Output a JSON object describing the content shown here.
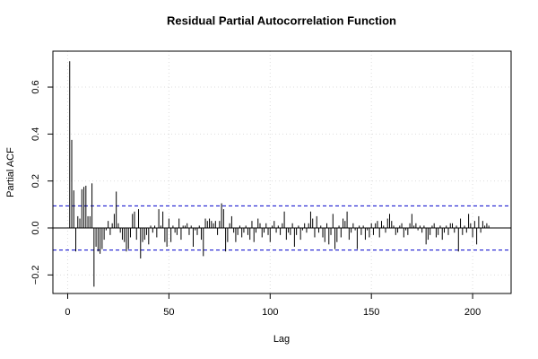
{
  "chart_data": {
    "type": "pacf",
    "title": "Residual Partial Autocorrelation Function",
    "x_label": "Lag",
    "y_label": "Partial ACF",
    "x": [
      1,
      2,
      3,
      4,
      5,
      6,
      7,
      8,
      9,
      10,
      11,
      12,
      13,
      14,
      15,
      16,
      17,
      18,
      19,
      20,
      21,
      22,
      23,
      24,
      25,
      26,
      27,
      28,
      29,
      30,
      31,
      32,
      33,
      34,
      35,
      36,
      37,
      38,
      39,
      40,
      41,
      42,
      43,
      44,
      45,
      46,
      47,
      48,
      49,
      50,
      51,
      52,
      53,
      54,
      55,
      56,
      57,
      58,
      59,
      60,
      61,
      62,
      63,
      64,
      65,
      66,
      67,
      68,
      69,
      70,
      71,
      72,
      73,
      74,
      75,
      76,
      77,
      78,
      79,
      80,
      81,
      82,
      83,
      84,
      85,
      86,
      87,
      88,
      89,
      90,
      91,
      92,
      93,
      94,
      95,
      96,
      97,
      98,
      99,
      100,
      101,
      102,
      103,
      104,
      105,
      106,
      107,
      108,
      109,
      110,
      111,
      112,
      113,
      114,
      115,
      116,
      117,
      118,
      119,
      120,
      121,
      122,
      123,
      124,
      125,
      126,
      127,
      128,
      129,
      130,
      131,
      132,
      133,
      134,
      135,
      136,
      137,
      138,
      139,
      140,
      141,
      142,
      143,
      144,
      145,
      146,
      147,
      148,
      149,
      150,
      151,
      152,
      153,
      154,
      155,
      156,
      157,
      158,
      159,
      160,
      161,
      162,
      163,
      164,
      165,
      166,
      167,
      168,
      169,
      170,
      171,
      172,
      173,
      174,
      175,
      176,
      177,
      178,
      179,
      180,
      181,
      182,
      183,
      184,
      185,
      186,
      187,
      188,
      189,
      190,
      191,
      192,
      193,
      194,
      195,
      196,
      197,
      198,
      199,
      200,
      201,
      202,
      203,
      204,
      205,
      206,
      207,
      208
    ],
    "values": [
      0.71,
      0.375,
      0.16,
      -0.1,
      0.05,
      0.04,
      0.165,
      0.175,
      0.18,
      0.05,
      0.05,
      0.19,
      -0.25,
      -0.08,
      -0.1,
      -0.11,
      -0.09,
      -0.05,
      -0.01,
      0.03,
      -0.03,
      0.02,
      0.06,
      0.155,
      0.02,
      -0.02,
      -0.05,
      -0.06,
      -0.1,
      -0.09,
      -0.04,
      0.06,
      0.07,
      -0.05,
      0.08,
      -0.13,
      -0.06,
      -0.05,
      -0.03,
      -0.07,
      0.01,
      -0.02,
      0.01,
      -0.04,
      0.08,
      0.01,
      0.07,
      -0.06,
      -0.08,
      0.04,
      -0.06,
      0.01,
      -0.02,
      -0.03,
      0.04,
      -0.05,
      0.01,
      0.01,
      0.02,
      -0.03,
      0.01,
      -0.08,
      -0.01,
      -0.03,
      0.01,
      -0.05,
      -0.12,
      0.04,
      0.03,
      0.04,
      0.03,
      0.02,
      0.03,
      -0.03,
      0.03,
      0.105,
      0.08,
      -0.1,
      -0.06,
      0.02,
      0.05,
      -0.02,
      -0.06,
      -0.03,
      0.01,
      -0.04,
      -0.02,
      0.01,
      -0.03,
      -0.05,
      0.03,
      -0.06,
      -0.02,
      0.04,
      0.02,
      -0.04,
      -0.02,
      0.02,
      -0.03,
      -0.06,
      0.01,
      0.03,
      -0.02,
      0.01,
      -0.03,
      0.02,
      0.07,
      -0.05,
      -0.02,
      -0.03,
      0.02,
      -0.08,
      -0.03,
      0.01,
      -0.05,
      -0.01,
      0.02,
      -0.02,
      0.02,
      0.07,
      0.04,
      -0.04,
      0.05,
      -0.02,
      0.01,
      -0.04,
      -0.06,
      0.02,
      -0.07,
      -0.03,
      0.06,
      -0.09,
      -0.06,
      0.01,
      -0.04,
      0.04,
      0.03,
      0.07,
      -0.05,
      -0.02,
      0.02,
      -0.01,
      -0.09,
      0.01,
      -0.03,
      0.01,
      -0.05,
      -0.01,
      -0.04,
      0.02,
      -0.03,
      0.02,
      0.03,
      -0.04,
      0.03,
      0.01,
      -0.02,
      0.04,
      0.06,
      0.03,
      0.01,
      -0.03,
      -0.02,
      0.01,
      0.02,
      -0.04,
      -0.01,
      -0.03,
      0.02,
      0.06,
      0.01,
      0.02,
      -0.01,
      0.01,
      -0.02,
      0.01,
      -0.07,
      -0.05,
      -0.03,
      0.01,
      0.02,
      -0.04,
      -0.03,
      0.01,
      -0.05,
      -0.02,
      0.01,
      -0.03,
      0.02,
      0.02,
      -0.02,
      0.01,
      -0.1,
      0.04,
      -0.03,
      0.01,
      -0.02,
      0.06,
      0.02,
      -0.04,
      0.03,
      -0.07,
      0.05,
      -0.02,
      0.03,
      0.01,
      0.02,
      0.01
    ],
    "color": "#000000",
    "conf_limits": [
      0.094,
      -0.094
    ],
    "conf_color": "#0000cc",
    "xlim": [
      -7.3,
      219
    ],
    "ylim": [
      -0.279,
      0.753
    ],
    "xticks": [
      0,
      50,
      100,
      150,
      200
    ],
    "yticks": [
      {
        "value": -0.2,
        "label": "−0.2"
      },
      {
        "value": 0,
        "label": "0.0"
      },
      0.2,
      0.4,
      0.6
    ],
    "grid": true
  }
}
